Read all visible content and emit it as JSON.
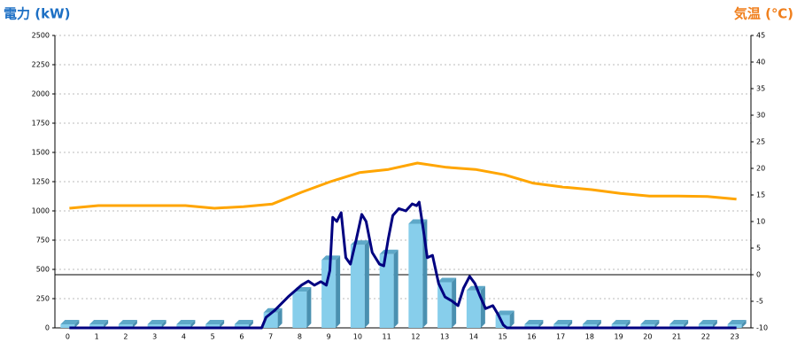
{
  "chart_data": {
    "type": "combo",
    "y_label": "電力 (kW)",
    "y2_label": "気温 (℃)",
    "categories": [
      "0",
      "1",
      "2",
      "3",
      "4",
      "5",
      "6",
      "7",
      "8",
      "9",
      "10",
      "11",
      "12",
      "13",
      "14",
      "15",
      "16",
      "17",
      "18",
      "19",
      "20",
      "21",
      "22",
      "23"
    ],
    "ylim": [
      0,
      2500
    ],
    "yticks": [
      0,
      250,
      500,
      750,
      1000,
      1250,
      1500,
      1750,
      2000,
      2250,
      2500
    ],
    "y2lim": [
      -10,
      45
    ],
    "y2ticks": [
      -10,
      -5,
      0,
      5,
      10,
      15,
      20,
      25,
      30,
      35,
      40,
      45
    ],
    "grid": true,
    "zero_line_y2": true,
    "series": [
      {
        "type": "bar",
        "color": "#87ceeb",
        "values": [
          0,
          0,
          0,
          0,
          0,
          0,
          0,
          100,
          280,
          550,
          680,
          600,
          860,
          360,
          290,
          80,
          0,
          0,
          0,
          0,
          0,
          0,
          0,
          0
        ]
      },
      {
        "type": "line",
        "color": "#000080",
        "x": [
          0,
          6.63,
          6.78,
          7.08,
          7.54,
          8.0,
          8.24,
          8.45,
          8.67,
          8.86,
          8.98,
          9.08,
          9.22,
          9.37,
          9.53,
          9.69,
          9.89,
          10.08,
          10.23,
          10.44,
          10.69,
          10.84,
          10.99,
          11.15,
          11.36,
          11.6,
          11.82,
          11.97,
          12.06,
          12.21,
          12.34,
          12.52,
          12.73,
          12.95,
          13.19,
          13.4,
          13.59,
          13.8,
          13.98,
          14.17,
          14.35,
          14.6,
          14.78,
          14.96,
          15.08,
          23
        ],
        "values": [
          0,
          0,
          90,
          150,
          265,
          365,
          400,
          365,
          395,
          365,
          490,
          945,
          910,
          985,
          600,
          545,
          755,
          970,
          910,
          645,
          545,
          530,
          755,
          960,
          1020,
          1000,
          1060,
          1045,
          1075,
          830,
          600,
          620,
          380,
          265,
          230,
          190,
          340,
          440,
          380,
          265,
          165,
          190,
          115,
          25,
          0,
          0
        ]
      },
      {
        "type": "line",
        "axis": "y2",
        "color": "#ffa500",
        "values": [
          12.5,
          13,
          13,
          13,
          13,
          12.5,
          12.8,
          13.3,
          15.5,
          17.5,
          19.2,
          19.8,
          21,
          20.2,
          19.8,
          18.8,
          17.2,
          16.5,
          16,
          15.3,
          14.8,
          14.8,
          14.7,
          14.2
        ]
      }
    ]
  }
}
